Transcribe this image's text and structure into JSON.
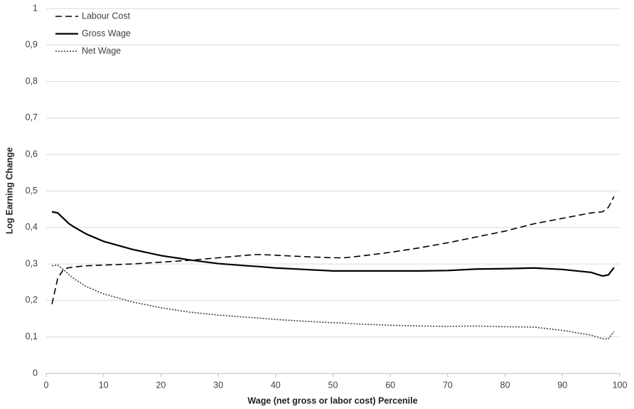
{
  "chart_data": {
    "type": "line",
    "xlabel": "Wage (net gross or labor cost) Percenile",
    "ylabel": "Log Earning Change",
    "x": [
      1,
      2,
      3,
      4,
      5,
      7,
      10,
      15,
      20,
      25,
      30,
      35,
      37,
      40,
      45,
      50,
      52,
      55,
      60,
      65,
      70,
      75,
      80,
      85,
      90,
      95,
      97,
      98,
      99
    ],
    "series": [
      {
        "name": "Labour Cost",
        "color": "#000000",
        "dash": "dashed",
        "values": [
          0.19,
          0.26,
          0.285,
          0.29,
          0.292,
          0.295,
          0.297,
          0.3,
          0.305,
          0.31,
          0.317,
          0.324,
          0.326,
          0.324,
          0.32,
          0.317,
          0.317,
          0.322,
          0.332,
          0.344,
          0.358,
          0.374,
          0.39,
          0.41,
          0.425,
          0.44,
          0.443,
          0.455,
          0.485
        ]
      },
      {
        "name": "Gross Wage",
        "color": "#000000",
        "dash": "solid",
        "values": [
          0.443,
          0.44,
          0.425,
          0.41,
          0.4,
          0.382,
          0.362,
          0.34,
          0.323,
          0.311,
          0.301,
          0.295,
          0.293,
          0.289,
          0.285,
          0.281,
          0.281,
          0.281,
          0.281,
          0.281,
          0.282,
          0.286,
          0.287,
          0.289,
          0.285,
          0.277,
          0.267,
          0.27,
          0.29
        ]
      },
      {
        "name": "Net Wage",
        "color": "#404040",
        "dash": "dotted",
        "values": [
          0.295,
          0.297,
          0.285,
          0.27,
          0.258,
          0.238,
          0.218,
          0.196,
          0.18,
          0.168,
          0.16,
          0.154,
          0.152,
          0.148,
          0.143,
          0.139,
          0.138,
          0.135,
          0.132,
          0.13,
          0.129,
          0.13,
          0.128,
          0.127,
          0.118,
          0.105,
          0.095,
          0.095,
          0.115
        ]
      }
    ],
    "xlim": [
      0,
      100
    ],
    "xticks": [
      0,
      10,
      20,
      30,
      40,
      50,
      60,
      70,
      80,
      90,
      100
    ],
    "ylim": [
      0,
      1
    ],
    "yticks": [
      0,
      {
        "value": 0.1,
        "label": "0,1"
      },
      {
        "value": 0.2,
        "label": "0,2"
      },
      {
        "value": 0.3,
        "label": "0,3"
      },
      {
        "value": 0.4,
        "label": "0,4"
      },
      {
        "value": 0.5,
        "label": "0,5"
      },
      {
        "value": 0.6,
        "label": "0,6"
      },
      {
        "value": 0.7,
        "label": "0,7"
      },
      {
        "value": 0.8,
        "label": "0,8"
      },
      {
        "value": 0.9,
        "label": "0,9"
      },
      1
    ],
    "grid": true,
    "legend": "top-left"
  }
}
